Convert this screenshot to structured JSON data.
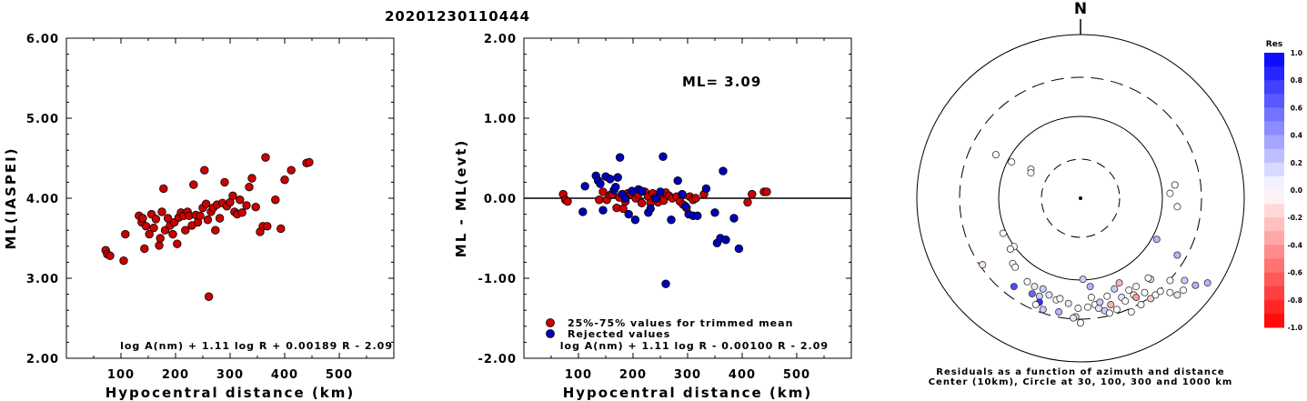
{
  "title": "20201230110444",
  "colors": {
    "red": "#cc0000",
    "blue": "#0000bb"
  },
  "chart_data": [
    {
      "type": "scatter",
      "ylabel": "ML(IASPEI)",
      "xlabel": "Hypocentral distance (km)",
      "xticks": [
        "100",
        "200",
        "300",
        "400",
        "500"
      ],
      "yticks": [
        "2.00",
        "3.00",
        "4.00",
        "5.00",
        "6.00"
      ],
      "xlim": [
        0,
        600
      ],
      "ylim": [
        2.0,
        6.0
      ],
      "formula": "log A(nm) + 1.11 log R + 0.00189 R - 2.09",
      "points": [
        [
          72,
          3.35
        ],
        [
          75,
          3.3
        ],
        [
          80,
          3.28
        ],
        [
          105,
          3.22
        ],
        [
          108,
          3.55
        ],
        [
          133,
          3.78
        ],
        [
          138,
          3.7
        ],
        [
          140,
          3.75
        ],
        [
          143,
          3.37
        ],
        [
          146,
          3.65
        ],
        [
          152,
          3.55
        ],
        [
          156,
          3.8
        ],
        [
          160,
          3.63
        ],
        [
          164,
          3.74
        ],
        [
          170,
          3.41
        ],
        [
          172,
          3.5
        ],
        [
          175,
          3.83
        ],
        [
          178,
          4.12
        ],
        [
          181,
          3.6
        ],
        [
          186,
          3.75
        ],
        [
          190,
          3.66
        ],
        [
          195,
          3.55
        ],
        [
          198,
          3.7
        ],
        [
          203,
          3.43
        ],
        [
          206,
          3.76
        ],
        [
          210,
          3.82
        ],
        [
          215,
          3.78
        ],
        [
          218,
          3.6
        ],
        [
          222,
          3.83
        ],
        [
          225,
          3.78
        ],
        [
          230,
          3.66
        ],
        [
          233,
          4.17
        ],
        [
          237,
          3.79
        ],
        [
          241,
          3.7
        ],
        [
          245,
          3.78
        ],
        [
          250,
          3.88
        ],
        [
          253,
          4.35
        ],
        [
          256,
          3.93
        ],
        [
          259,
          3.73
        ],
        [
          261,
          2.77
        ],
        [
          265,
          3.83
        ],
        [
          269,
          3.88
        ],
        [
          273,
          3.6
        ],
        [
          276,
          3.92
        ],
        [
          281,
          3.75
        ],
        [
          286,
          3.94
        ],
        [
          290,
          4.2
        ],
        [
          294,
          3.9
        ],
        [
          300,
          3.95
        ],
        [
          305,
          4.03
        ],
        [
          308,
          3.83
        ],
        [
          313,
          3.8
        ],
        [
          318,
          3.98
        ],
        [
          322,
          3.82
        ],
        [
          330,
          3.91
        ],
        [
          335,
          4.14
        ],
        [
          340,
          4.25
        ],
        [
          347,
          3.89
        ],
        [
          355,
          3.58
        ],
        [
          360,
          3.65
        ],
        [
          365,
          4.51
        ],
        [
          368,
          3.65
        ],
        [
          383,
          3.98
        ],
        [
          393,
          3.62
        ],
        [
          400,
          4.23
        ],
        [
          412,
          4.35
        ],
        [
          440,
          4.44
        ],
        [
          445,
          4.45
        ]
      ]
    },
    {
      "type": "scatter",
      "ylabel": "ML - ML(evt)",
      "xlabel": "Hypocentral distance (km)",
      "xticks": [
        "100",
        "200",
        "300",
        "400",
        "500"
      ],
      "yticks": [
        "-2.00",
        "-1.00",
        "0.00",
        "1.00",
        "2.00"
      ],
      "xlim": [
        0,
        600
      ],
      "ylim": [
        -2.0,
        2.0
      ],
      "annotation": "ML= 3.09",
      "formula": "log A(nm) + 1.11 log R - 0.00100 R - 2.09",
      "legend": [
        "25%-75% values for trimmed mean",
        "Rejected values"
      ],
      "series": [
        {
          "name": "25%-75% values for trimmed mean",
          "color": "red",
          "points": [
            [
              72,
              0.05
            ],
            [
              76,
              -0.02
            ],
            [
              80,
              -0.04
            ],
            [
              138,
              -0.02
            ],
            [
              145,
              0.08
            ],
            [
              152,
              -0.02
            ],
            [
              158,
              0.04
            ],
            [
              162,
              0.05
            ],
            [
              170,
              -0.12
            ],
            [
              175,
              0.01
            ],
            [
              182,
              -0.13
            ],
            [
              186,
              -0.04
            ],
            [
              190,
              0.06
            ],
            [
              195,
              0.04
            ],
            [
              200,
              0.08
            ],
            [
              205,
              0.0
            ],
            [
              210,
              0.05
            ],
            [
              216,
              -0.06
            ],
            [
              222,
              0.08
            ],
            [
              228,
              0.02
            ],
            [
              232,
              -0.06
            ],
            [
              236,
              0.06
            ],
            [
              240,
              0.0
            ],
            [
              246,
              -0.05
            ],
            [
              250,
              0.05
            ],
            [
              256,
              -0.03
            ],
            [
              260,
              0.07
            ],
            [
              266,
              0.03
            ],
            [
              272,
              0.0
            ],
            [
              280,
              0.02
            ],
            [
              286,
              -0.04
            ],
            [
              292,
              -0.08
            ],
            [
              298,
              -0.12
            ],
            [
              304,
              0.02
            ],
            [
              310,
              -0.02
            ],
            [
              315,
              0.0
            ],
            [
              330,
              0.05
            ],
            [
              410,
              -0.05
            ],
            [
              418,
              0.05
            ],
            [
              440,
              0.08
            ],
            [
              445,
              0.08
            ]
          ]
        },
        {
          "name": "Rejected values",
          "color": "blue",
          "points": [
            [
              108,
              -0.17
            ],
            [
              112,
              0.15
            ],
            [
              132,
              0.28
            ],
            [
              136,
              0.22
            ],
            [
              140,
              0.18
            ],
            [
              145,
              -0.15
            ],
            [
              150,
              0.27
            ],
            [
              158,
              0.24
            ],
            [
              165,
              0.1
            ],
            [
              168,
              0.14
            ],
            [
              172,
              0.26
            ],
            [
              176,
              0.51
            ],
            [
              180,
              0.05
            ],
            [
              186,
              0.0
            ],
            [
              192,
              -0.2
            ],
            [
              198,
              0.09
            ],
            [
              204,
              -0.27
            ],
            [
              210,
              0.11
            ],
            [
              216,
              0.09
            ],
            [
              228,
              -0.18
            ],
            [
              232,
              -0.13
            ],
            [
              242,
              0.0
            ],
            [
              250,
              0.08
            ],
            [
              255,
              0.52
            ],
            [
              260,
              -1.07
            ],
            [
              270,
              -0.27
            ],
            [
              282,
              0.22
            ],
            [
              290,
              0.05
            ],
            [
              296,
              -0.1
            ],
            [
              302,
              -0.2
            ],
            [
              310,
              -0.22
            ],
            [
              318,
              -0.22
            ],
            [
              334,
              0.12
            ],
            [
              350,
              -0.18
            ],
            [
              354,
              -0.56
            ],
            [
              360,
              -0.5
            ],
            [
              365,
              0.34
            ],
            [
              370,
              -0.52
            ],
            [
              385,
              -0.25
            ],
            [
              394,
              -0.63
            ]
          ]
        }
      ]
    },
    {
      "type": "polar-scatter",
      "north_label": "N",
      "colorbar_title": "Res",
      "colorbar_ticks": [
        "1.0",
        "0.8",
        "0.6",
        "0.4",
        "0.2",
        "0.0",
        "-0.2",
        "-0.4",
        "-0.6",
        "-0.8",
        "-1.0"
      ],
      "caption_line1": "Residuals as a function of azimuth and distance",
      "caption_line2": "Center (10km), Circle at 30, 100, 300 and 1000 km",
      "points": [
        [
          -0.02,
          -0.91,
          0.0
        ],
        [
          0.8,
          -0.47,
          0.3
        ],
        [
          -0.7,
          0.36,
          0.0
        ],
        [
          -0.57,
          0.3,
          0.0
        ],
        [
          -0.41,
          0.24,
          0.0
        ],
        [
          -0.41,
          0.21,
          0.0
        ],
        [
          0.78,
          0.11,
          0.0
        ],
        [
          0.74,
          0.04,
          0.0
        ],
        [
          0.8,
          -0.07,
          0.0
        ],
        [
          0.63,
          -0.34,
          0.3
        ],
        [
          -0.64,
          -0.29,
          0.0
        ],
        [
          -0.55,
          -0.4,
          0.0
        ],
        [
          -0.58,
          -0.42,
          0.0
        ],
        [
          -0.81,
          -0.55,
          -0.1
        ],
        [
          -0.56,
          -0.54,
          0.0
        ],
        [
          -0.54,
          -0.57,
          0.0
        ],
        [
          -0.55,
          -0.73,
          0.7
        ],
        [
          -0.44,
          -0.69,
          0.0
        ],
        [
          -0.38,
          -0.73,
          0.1
        ],
        [
          -0.31,
          -0.75,
          0.2
        ],
        [
          -0.4,
          -0.79,
          0.6
        ],
        [
          -0.34,
          -0.81,
          0.2
        ],
        [
          -0.34,
          -0.86,
          0.8
        ],
        [
          -0.37,
          -0.88,
          0.0
        ],
        [
          -0.31,
          -0.92,
          0.2
        ],
        [
          -0.2,
          -0.84,
          0.0
        ],
        [
          -0.18,
          -0.94,
          0.3
        ],
        [
          -0.04,
          -0.98,
          -0.2
        ],
        [
          -0.06,
          -0.99,
          0.1
        ],
        [
          0.0,
          -1.03,
          0.0
        ],
        [
          0.02,
          -0.67,
          0.2
        ],
        [
          0.09,
          -0.82,
          0.0
        ],
        [
          0.12,
          -0.88,
          0.0
        ],
        [
          0.15,
          -0.91,
          0.1
        ],
        [
          0.2,
          -0.93,
          0.2
        ],
        [
          0.22,
          -0.81,
          0.0
        ],
        [
          0.25,
          -0.88,
          -0.3
        ],
        [
          0.3,
          -0.92,
          0.0
        ],
        [
          0.34,
          -0.82,
          0.1
        ],
        [
          0.37,
          -0.85,
          0.0
        ],
        [
          0.4,
          -0.76,
          0.0
        ],
        [
          0.44,
          -0.8,
          0.0
        ],
        [
          0.46,
          -0.82,
          -0.4
        ],
        [
          0.5,
          -0.88,
          0.0
        ],
        [
          0.53,
          -0.78,
          0.0
        ],
        [
          0.58,
          -0.83,
          -0.2
        ],
        [
          0.62,
          -0.8,
          0.0
        ],
        [
          0.66,
          -0.77,
          0.0
        ],
        [
          0.74,
          -0.78,
          0.0
        ],
        [
          0.8,
          -0.8,
          0.1
        ],
        [
          0.85,
          -0.76,
          0.0
        ],
        [
          0.42,
          -0.94,
          0.0
        ],
        [
          0.58,
          -0.67,
          0.1
        ],
        [
          0.74,
          -0.68,
          0.0
        ],
        [
          0.86,
          -0.68,
          0.2
        ],
        [
          -0.17,
          -0.83,
          0.0
        ],
        [
          -0.1,
          -0.87,
          0.1
        ],
        [
          0.06,
          -0.9,
          0.0
        ],
        [
          0.16,
          -0.86,
          0.2
        ],
        [
          0.24,
          -0.95,
          0.0
        ],
        [
          0.32,
          -0.7,
          -0.3
        ],
        [
          0.46,
          -0.73,
          0.0
        ],
        [
          0.28,
          -0.75,
          0.2
        ],
        [
          -0.26,
          -0.8,
          0.1
        ],
        [
          0.08,
          -0.73,
          0.3
        ],
        [
          0.56,
          -0.66,
          0.0
        ],
        [
          0.95,
          -0.72,
          0.3
        ],
        [
          1.05,
          -0.7,
          0.3
        ]
      ]
    }
  ]
}
